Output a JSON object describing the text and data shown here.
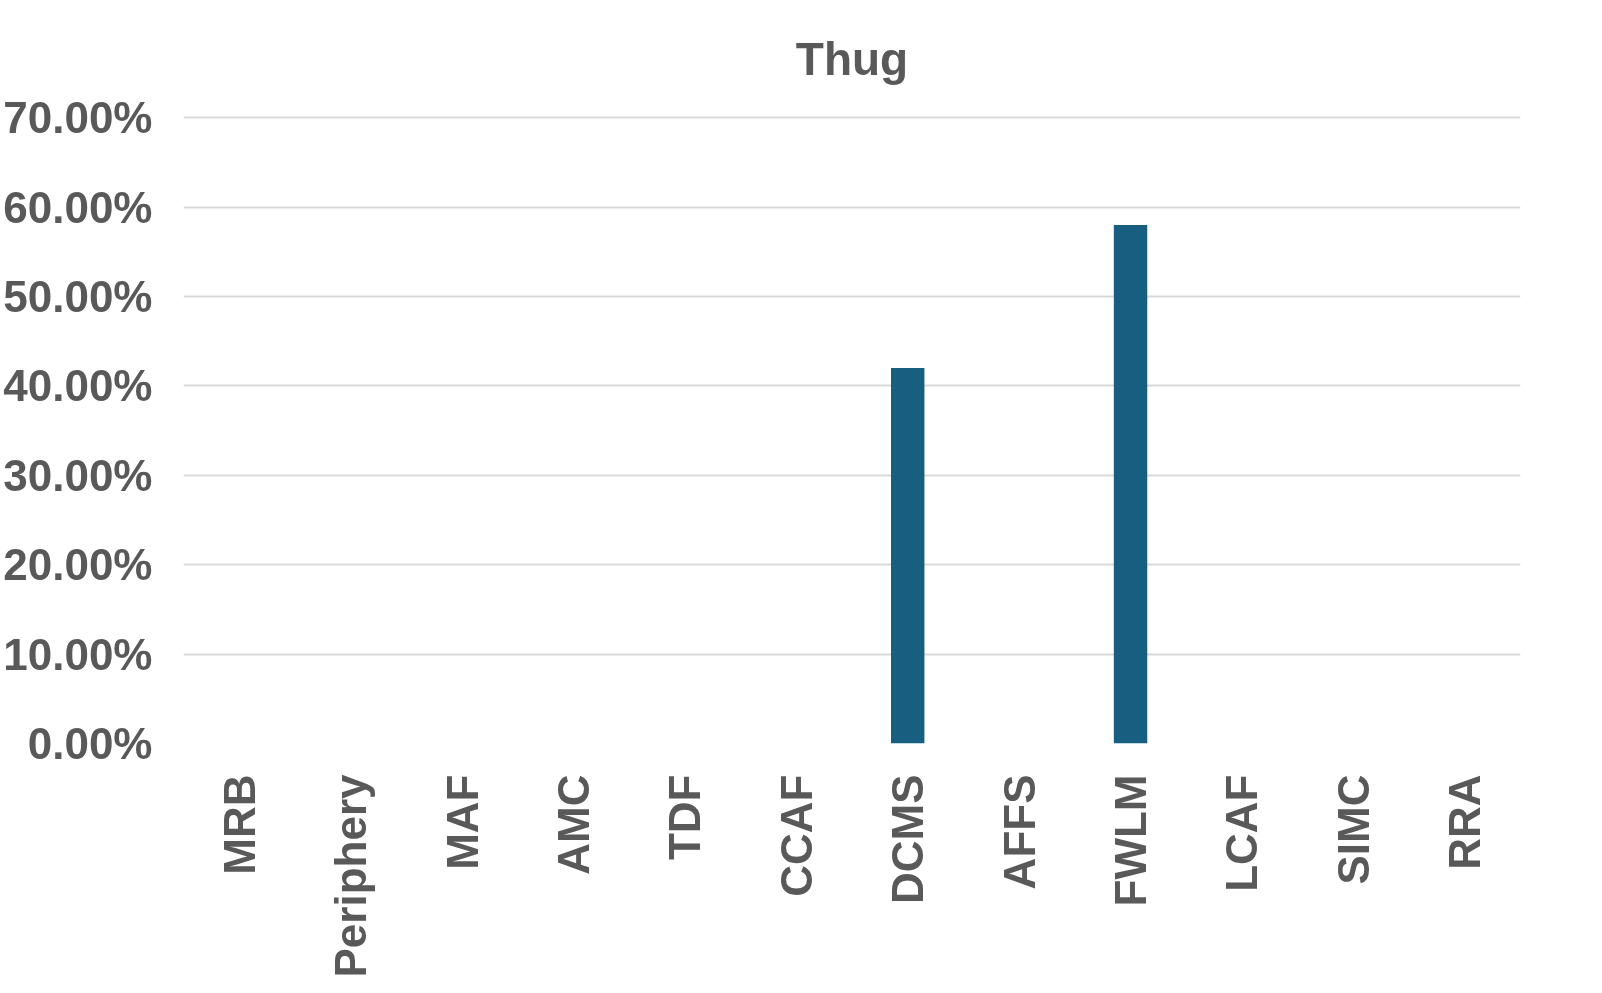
{
  "chart_data": {
    "type": "bar",
    "title": "Thug",
    "categories": [
      "MRB",
      "Periphery",
      "MAF",
      "AMC",
      "TDF",
      "CCAF",
      "DCMS",
      "AFFS",
      "FWLM",
      "LCAF",
      "SIMC",
      "RRA"
    ],
    "values": [
      0,
      0,
      0,
      0,
      0,
      0,
      42,
      0,
      58,
      0,
      0,
      0
    ],
    "color": "#175e80",
    "ylim": [
      0,
      70
    ],
    "yticks": [
      {
        "value": 0,
        "label": "0.00%"
      },
      {
        "value": 10,
        "label": "10.00%"
      },
      {
        "value": 20,
        "label": "20.00%"
      },
      {
        "value": 30,
        "label": "30.00%"
      },
      {
        "value": 40,
        "label": "40.00%"
      },
      {
        "value": 50,
        "label": "50.00%"
      },
      {
        "value": 60,
        "label": "60.00%"
      },
      {
        "value": 70,
        "label": "70.00%"
      }
    ],
    "grid": "y"
  }
}
